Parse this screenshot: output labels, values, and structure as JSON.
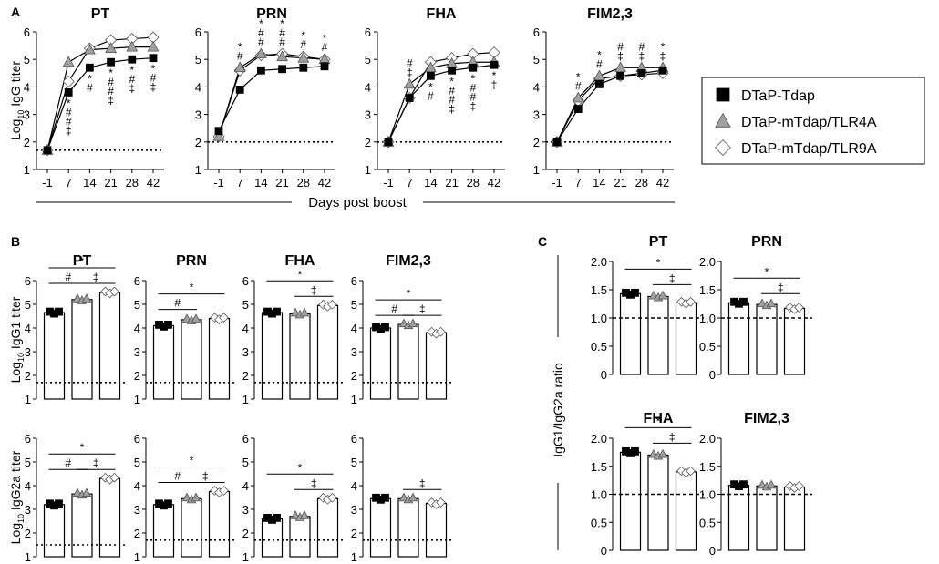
{
  "panel_labels": {
    "A": "A",
    "B": "B",
    "C": "C"
  },
  "legend": [
    {
      "label": "DTaP-Tdap",
      "marker": "square",
      "fill": "#000000"
    },
    {
      "label": "DTaP-mTdap/TLR4A",
      "marker": "triangle",
      "fill": "#a0a0a0"
    },
    {
      "label": "DTaP-mTdap/TLR9A",
      "marker": "diamond",
      "fill": "#ffffff"
    }
  ],
  "chart_data": [
    {
      "panel": "A",
      "type": "line",
      "ylabel_base": "Log",
      "ylabel_sub": "10",
      "ylabel_rest": " IgG titer",
      "xlabel": "Days post boost",
      "categories": [
        "-1",
        "7",
        "14",
        "21",
        "28",
        "42"
      ],
      "ylim": [
        1,
        6
      ],
      "yticks": [
        "1",
        "2",
        "3",
        "4",
        "5",
        "6"
      ],
      "charts": [
        {
          "title": "PT",
          "baseline": 1.7,
          "series": [
            {
              "name": "DTaP-Tdap",
              "values": [
                1.7,
                3.8,
                4.7,
                4.9,
                5.0,
                5.05
              ]
            },
            {
              "name": "DTaP-mTdap/TLR4A",
              "values": [
                1.7,
                4.9,
                5.35,
                5.4,
                5.45,
                5.45
              ]
            },
            {
              "name": "DTaP-mTdap/TLR9A",
              "values": [
                1.7,
                4.2,
                5.4,
                5.7,
                5.75,
                5.8
              ]
            }
          ],
          "sig": [
            [
              "*",
              "#",
              "#",
              "‡"
            ],
            [
              "*",
              "#"
            ],
            [
              "*",
              "#",
              "#",
              "‡"
            ],
            [
              "*",
              "#",
              "‡"
            ],
            [
              "*",
              "#",
              "‡"
            ]
          ],
          "sig_x": [
            1,
            2,
            3,
            4,
            5
          ],
          "sig_pos": [
            "below",
            "below",
            "below",
            "below",
            "below"
          ]
        },
        {
          "title": "PRN",
          "baseline": 2,
          "series": [
            {
              "name": "DTaP-Tdap",
              "values": [
                2.4,
                3.9,
                4.6,
                4.65,
                4.7,
                4.75
              ]
            },
            {
              "name": "DTaP-mTdap/TLR4A",
              "values": [
                2.2,
                4.7,
                5.2,
                5.1,
                5.05,
                5.0
              ]
            },
            {
              "name": "DTaP-mTdap/TLR9A",
              "values": [
                2.2,
                4.6,
                5.15,
                5.2,
                5.1,
                5.0
              ]
            }
          ],
          "sig": [
            [
              "*",
              "#"
            ],
            [
              "*",
              "#",
              "#"
            ],
            [
              "*",
              "#",
              "#"
            ],
            [
              "*",
              "#"
            ],
            [
              "*",
              "#"
            ]
          ],
          "sig_x": [
            1,
            2,
            3,
            4,
            5
          ],
          "sig_pos": [
            "above",
            "above",
            "above",
            "above",
            "above"
          ]
        },
        {
          "title": "FHA",
          "baseline": 2,
          "series": [
            {
              "name": "DTaP-Tdap",
              "values": [
                2.0,
                3.6,
                4.4,
                4.6,
                4.7,
                4.8
              ]
            },
            {
              "name": "DTaP-mTdap/TLR4A",
              "values": [
                2.0,
                4.1,
                4.7,
                4.85,
                4.9,
                4.9
              ]
            },
            {
              "name": "DTaP-mTdap/TLR9A",
              "values": [
                2.0,
                3.6,
                4.9,
                5.05,
                5.2,
                5.25
              ]
            }
          ],
          "sig": [
            [
              "#",
              "‡"
            ],
            [
              "*",
              "#"
            ],
            [
              "*",
              "#",
              "#",
              "‡"
            ],
            [
              "*",
              "#",
              "#",
              "‡"
            ],
            [
              "*",
              "‡"
            ]
          ],
          "sig_x": [
            1,
            2,
            3,
            4,
            5
          ],
          "sig_pos": [
            "above",
            "below",
            "below",
            "below",
            "below"
          ]
        },
        {
          "title": "FIM2,3",
          "baseline": 2,
          "series": [
            {
              "name": "DTaP-Tdap",
              "values": [
                2.0,
                3.2,
                4.1,
                4.4,
                4.5,
                4.6
              ]
            },
            {
              "name": "DTaP-mTdap/TLR4A",
              "values": [
                2.0,
                3.6,
                4.4,
                4.7,
                4.7,
                4.7
              ]
            },
            {
              "name": "DTaP-mTdap/TLR9A",
              "values": [
                2.0,
                3.5,
                4.3,
                4.4,
                4.45,
                4.5
              ]
            }
          ],
          "sig": [
            [
              "*",
              "#"
            ],
            [
              "*",
              "#"
            ],
            [
              "#",
              "‡"
            ],
            [
              "#",
              "‡"
            ],
            [
              "*",
              "‡"
            ]
          ],
          "sig_x": [
            1,
            2,
            3,
            4,
            5
          ],
          "sig_pos": [
            "above",
            "above",
            "above",
            "above",
            "above"
          ]
        }
      ]
    },
    {
      "panel": "B",
      "type": "bar",
      "ylim": [
        1,
        6
      ],
      "yticks": [
        "1",
        "2",
        "3",
        "4",
        "5",
        "6"
      ],
      "rows": [
        {
          "ylabel_base": "Log",
          "ylabel_sub": "10",
          "ylabel_rest": " IgG1 titer",
          "charts": [
            {
              "title": "PT",
              "values": [
                4.65,
                5.2,
                5.5
              ],
              "baseline": 1.7,
              "brackets": [
                {
                  "from": 0,
                  "to": 2,
                  "symbol": "*"
                },
                {
                  "from": 0,
                  "to": 1,
                  "symbol": "#"
                },
                {
                  "from": 1,
                  "to": 2,
                  "symbol": "‡"
                }
              ]
            },
            {
              "title": "PRN",
              "values": [
                4.1,
                4.35,
                4.4
              ],
              "baseline": 1.7,
              "brackets": [
                {
                  "from": 0,
                  "to": 2,
                  "symbol": "*"
                },
                {
                  "from": 0,
                  "to": 1,
                  "symbol": "#"
                }
              ]
            },
            {
              "title": "FHA",
              "values": [
                4.65,
                4.6,
                4.95
              ],
              "baseline": 1.7,
              "brackets": [
                {
                  "from": 0,
                  "to": 2,
                  "symbol": "*"
                },
                {
                  "from": 1,
                  "to": 2,
                  "symbol": "‡"
                }
              ]
            },
            {
              "title": "FIM2,3",
              "values": [
                4.0,
                4.15,
                3.8
              ],
              "baseline": 1.7,
              "brackets": [
                {
                  "from": 0,
                  "to": 2,
                  "symbol": "*"
                },
                {
                  "from": 0,
                  "to": 1,
                  "symbol": "#"
                },
                {
                  "from": 1,
                  "to": 2,
                  "symbol": "‡"
                }
              ]
            }
          ]
        },
        {
          "ylabel_base": "Log",
          "ylabel_sub": "10",
          "ylabel_rest": " IgG2a titer",
          "charts": [
            {
              "title": "",
              "values": [
                3.2,
                3.65,
                4.3
              ],
              "baseline": 1.5,
              "brackets": [
                {
                  "from": 0,
                  "to": 2,
                  "symbol": "*"
                },
                {
                  "from": 0,
                  "to": 1,
                  "symbol": "#"
                },
                {
                  "from": 1,
                  "to": 2,
                  "symbol": "‡"
                }
              ]
            },
            {
              "title": "",
              "values": [
                3.2,
                3.45,
                3.75
              ],
              "baseline": 1.7,
              "brackets": [
                {
                  "from": 0,
                  "to": 2,
                  "symbol": "*"
                },
                {
                  "from": 0,
                  "to": 1,
                  "symbol": "#"
                },
                {
                  "from": 1,
                  "to": 2,
                  "symbol": "‡"
                }
              ]
            },
            {
              "title": "",
              "values": [
                2.6,
                2.7,
                3.45
              ],
              "baseline": 1.7,
              "brackets": [
                {
                  "from": 0,
                  "to": 2,
                  "symbol": "*"
                },
                {
                  "from": 1,
                  "to": 2,
                  "symbol": "‡"
                }
              ]
            },
            {
              "title": "",
              "values": [
                3.45,
                3.45,
                3.25
              ],
              "baseline": 1.7,
              "brackets": [
                {
                  "from": 1,
                  "to": 2,
                  "symbol": "‡"
                }
              ]
            }
          ]
        }
      ]
    },
    {
      "panel": "C",
      "type": "bar",
      "ylabel": "IgG1/IgG2a ratio",
      "ylim": [
        0,
        2
      ],
      "yticks": [
        "0",
        "0.5",
        "1.0",
        "1.5",
        "2.0"
      ],
      "ytick_values": [
        0,
        0.5,
        1.0,
        1.5,
        2.0
      ],
      "reference_line": 1.0,
      "charts": [
        {
          "title": "PT",
          "values": [
            1.43,
            1.38,
            1.27
          ],
          "brackets": [
            {
              "from": 0,
              "to": 2,
              "symbol": "*"
            },
            {
              "from": 1,
              "to": 2,
              "symbol": "‡"
            }
          ]
        },
        {
          "title": "PRN",
          "values": [
            1.27,
            1.24,
            1.17
          ],
          "brackets": [
            {
              "from": 0,
              "to": 2,
              "symbol": "*"
            },
            {
              "from": 1,
              "to": 2,
              "symbol": "‡"
            }
          ]
        },
        {
          "title": "FHA",
          "values": [
            1.75,
            1.7,
            1.4
          ],
          "brackets": [
            {
              "from": 0,
              "to": 2,
              "symbol": "*"
            },
            {
              "from": 1,
              "to": 2,
              "symbol": "‡"
            }
          ]
        },
        {
          "title": "FIM2,3",
          "values": [
            1.16,
            1.15,
            1.13
          ],
          "brackets": []
        }
      ]
    }
  ]
}
